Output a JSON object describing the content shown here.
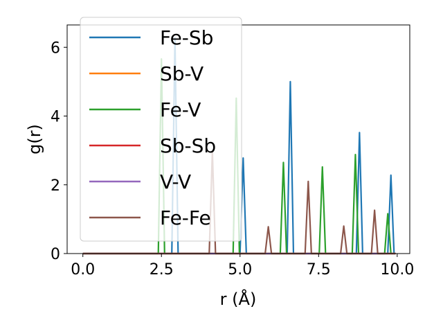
{
  "chart_data": {
    "type": "line",
    "title": "",
    "xlabel": "r (Å)",
    "ylabel": "g(r)",
    "xlim": [
      -0.5,
      10.4
    ],
    "ylim": [
      0,
      6.65
    ],
    "x_ticks": [
      "0.0",
      "2.5",
      "5.0",
      "7.5",
      "10.0"
    ],
    "x_tick_values": [
      0.0,
      2.5,
      5.0,
      7.5,
      10.0
    ],
    "y_ticks": [
      "0",
      "2",
      "4",
      "6"
    ],
    "y_tick_values": [
      0,
      2,
      4,
      6
    ],
    "grid": false,
    "legend_position": "upper-left",
    "peak_half_width": 0.1,
    "series": [
      {
        "name": "Fe-Sb",
        "color": "#1f77b4",
        "peaks": [
          [
            2.93,
            6.28
          ],
          [
            5.1,
            2.78
          ],
          [
            6.6,
            5.0
          ],
          [
            8.8,
            3.52
          ],
          [
            9.8,
            2.28
          ]
        ]
      },
      {
        "name": "Sb-V",
        "color": "#ff7f0e",
        "peaks": []
      },
      {
        "name": "Fe-V",
        "color": "#2ca02c",
        "peaks": [
          [
            2.5,
            5.66
          ],
          [
            4.88,
            4.52
          ],
          [
            6.38,
            2.65
          ],
          [
            7.62,
            2.52
          ],
          [
            8.67,
            2.88
          ],
          [
            9.7,
            1.16
          ]
        ]
      },
      {
        "name": "Sb-Sb",
        "color": "#d62728",
        "peaks": []
      },
      {
        "name": "V-V",
        "color": "#9467bd",
        "peaks": []
      },
      {
        "name": "Fe-Fe",
        "color": "#8c564b",
        "peaks": [
          [
            4.12,
            2.98
          ],
          [
            5.9,
            0.78
          ],
          [
            7.17,
            2.1
          ],
          [
            8.3,
            0.8
          ],
          [
            9.28,
            1.26
          ]
        ]
      }
    ]
  }
}
